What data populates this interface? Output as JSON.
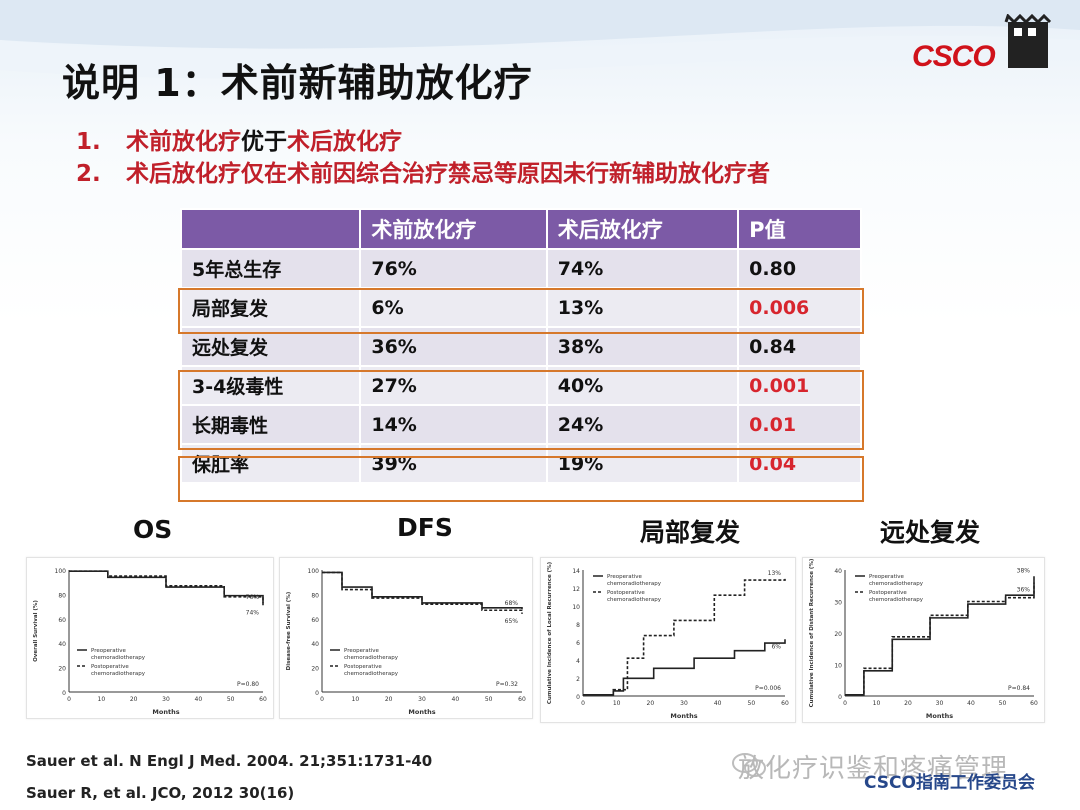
{
  "title": "说明 1：术前新辅助放化疗",
  "brand": {
    "logo_text": "CSCO",
    "accent": "#d0121b"
  },
  "points": [
    {
      "num": "1.",
      "parts": [
        {
          "text": "术前放化疗",
          "color": "red"
        },
        {
          "text": "优于",
          "color": "black"
        },
        {
          "text": "术后放化疗",
          "color": "red"
        }
      ]
    },
    {
      "num": "2.",
      "parts": [
        {
          "text": "术后放化疗仅在术前因综合治疗禁忌等原因未行新辅助放化疗者",
          "color": "red"
        }
      ]
    }
  ],
  "table": {
    "headers": [
      "",
      "术前放化疗",
      "术后放化疗",
      "P值"
    ],
    "rows": [
      {
        "label": "5年总生存",
        "pre": "76%",
        "post": "74%",
        "p": "0.80",
        "significant": false
      },
      {
        "label": "局部复发",
        "pre": "6%",
        "post": "13%",
        "p": "0.006",
        "significant": true
      },
      {
        "label": "远处复发",
        "pre": "36%",
        "post": "38%",
        "p": "0.84",
        "significant": false
      },
      {
        "label": "3-4级毒性",
        "pre": "27%",
        "post": "40%",
        "p": "0.001",
        "significant": true
      },
      {
        "label": "长期毒性",
        "pre": "14%",
        "post": "24%",
        "p": "0.01",
        "significant": true
      },
      {
        "label": "保肛率",
        "pre": "39%",
        "post": "19%",
        "p": "0.04",
        "significant": true
      }
    ],
    "header_color": "#7c5aa6",
    "highlight_color": "#d6782b",
    "significant_color": "#d7252e"
  },
  "plot_labels": [
    "OS",
    "DFS",
    "局部复发",
    "远处复发"
  ],
  "plots": [
    {
      "ylabel": "Overall Survival (%)",
      "xlabel": "Months",
      "yticks": [
        "100",
        "80",
        "60",
        "40",
        "20",
        "0"
      ],
      "xticks": [
        "0",
        "10",
        "20",
        "30",
        "40",
        "50",
        "60"
      ],
      "legend": [
        "Preoperative chemoradiotherapy",
        "Postoperative chemoradiotherapy"
      ],
      "pvalue": "P=0.80",
      "end_labels": [
        "76%",
        "74%"
      ]
    },
    {
      "ylabel": "Disease-free Survival (%)",
      "xlabel": "Months",
      "yticks": [
        "100",
        "80",
        "60",
        "40",
        "20",
        "0"
      ],
      "xticks": [
        "0",
        "10",
        "20",
        "30",
        "40",
        "50",
        "60"
      ],
      "legend": [
        "Preoperative chemoradiotherapy",
        "Postoperative chemoradiotherapy"
      ],
      "pvalue": "P=0.32",
      "end_labels": [
        "68%",
        "65%"
      ]
    },
    {
      "ylabel": "Cumulative Incidence of Local Recurrence (%)",
      "xlabel": "Months",
      "yticks": [
        "14",
        "12",
        "10",
        "8",
        "6",
        "4",
        "2",
        "0"
      ],
      "xticks": [
        "0",
        "10",
        "20",
        "30",
        "40",
        "50",
        "60"
      ],
      "legend": [
        "Preoperative chemoradiotherapy",
        "Postoperative chemoradiotherapy"
      ],
      "pvalue": "P=0.006",
      "end_labels": [
        "13%",
        "6%"
      ]
    },
    {
      "ylabel": "Cumulative Incidence of Distant Recurrence (%)",
      "xlabel": "Months",
      "yticks": [
        "40",
        "30",
        "20",
        "10",
        "0"
      ],
      "xticks": [
        "0",
        "10",
        "20",
        "30",
        "40",
        "50",
        "60"
      ],
      "legend": [
        "Preoperative chemoradiotherapy",
        "Postoperative chemoradiotherapy"
      ],
      "pvalue": "P=0.84",
      "end_labels": [
        "38%",
        "36%"
      ]
    }
  ],
  "references": [
    "Sauer et al. N Engl J Med. 2004. 21;351:1731-40",
    "Sauer R, et al. JCO, 2012 30(16)"
  ],
  "watermark": {
    "main": "放化疗识鉴和疼痛管理",
    "sub": "CSCO指南工作委员会"
  }
}
